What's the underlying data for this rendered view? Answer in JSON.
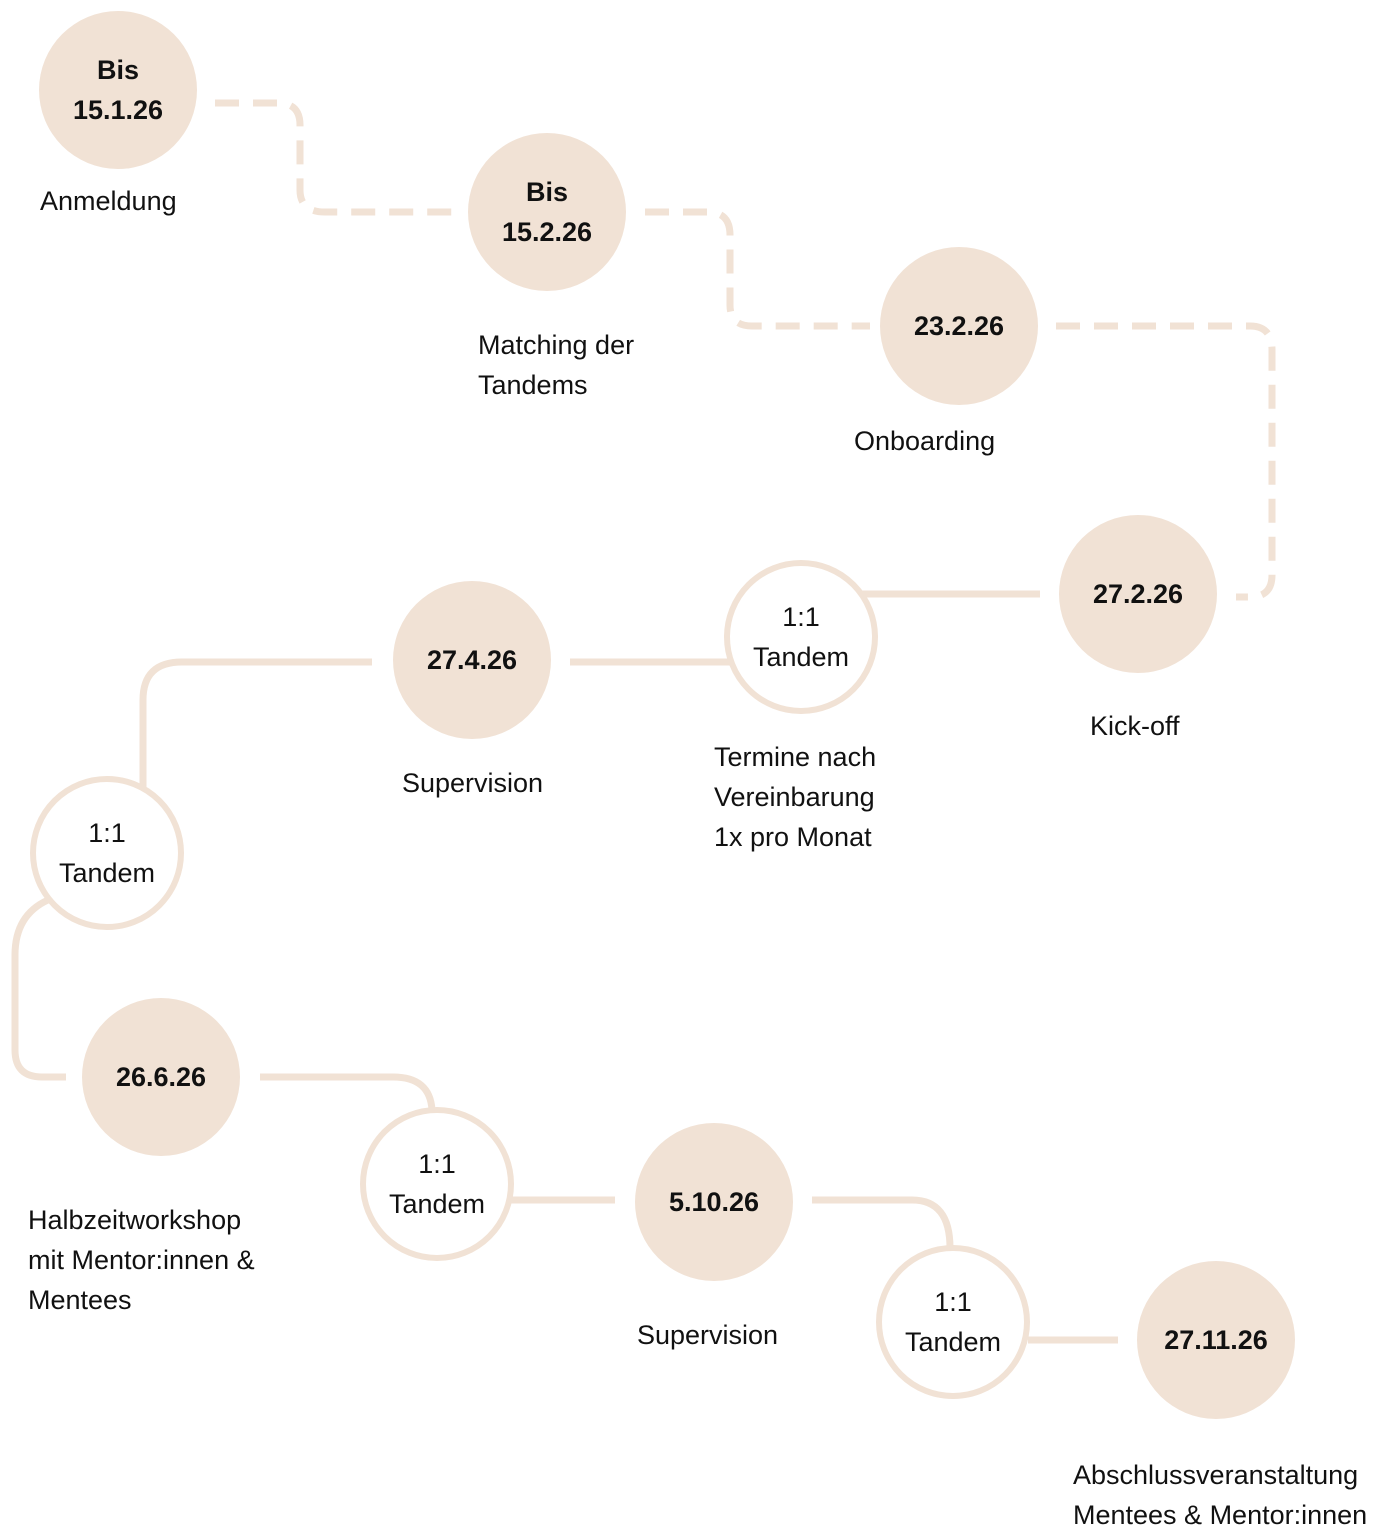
{
  "nodes": [
    {
      "date": [
        "Bis",
        "15.1.26"
      ],
      "label": [
        "Anmeldung"
      ]
    },
    {
      "date": [
        "Bis",
        "15.2.26"
      ],
      "label": [
        "Matching der",
        "Tandems"
      ]
    },
    {
      "date": [
        "23.2.26"
      ],
      "label": [
        "Onboarding"
      ]
    },
    {
      "date": [
        "27.2.26"
      ],
      "label": [
        "Kick-off"
      ]
    },
    {
      "date": [
        "1:1",
        "Tandem"
      ],
      "label": [
        "Termine nach",
        "Vereinbarung",
        "1x pro Monat"
      ]
    },
    {
      "date": [
        "27.4.26"
      ],
      "label": [
        "Supervision"
      ]
    },
    {
      "date": [
        "1:1",
        "Tandem"
      ],
      "label": []
    },
    {
      "date": [
        "26.6.26"
      ],
      "label": [
        "Halbzeitworkshop",
        "mit Mentor:innen &",
        "Mentees"
      ]
    },
    {
      "date": [
        "1:1",
        "Tandem"
      ],
      "label": []
    },
    {
      "date": [
        "5.10.26"
      ],
      "label": [
        "Supervision"
      ]
    },
    {
      "date": [
        "1:1",
        "Tandem"
      ],
      "label": []
    },
    {
      "date": [
        "27.11.26"
      ],
      "label": [
        "Abschlussveranstaltung",
        "Mentees & Mentor:innen"
      ]
    }
  ]
}
